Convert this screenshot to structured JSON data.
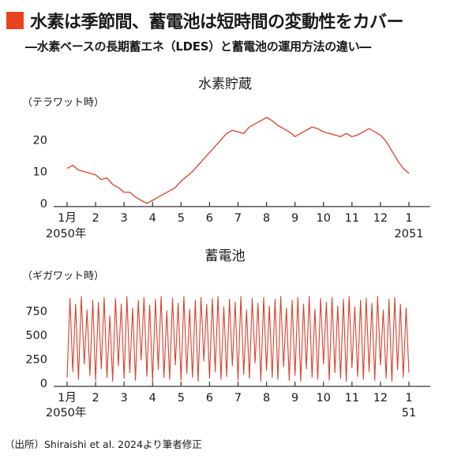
{
  "header": {
    "title": "水素は季節間、蓄電池は短時間の変動性をカバー",
    "subtitle": "―水素ベースの長期蓄エネ（LDES）と蓄電池の運用方法の違い―"
  },
  "footer": {
    "source": "（出所）Shiraishi et al. 2024より筆者修正"
  },
  "colors": {
    "accent": "#e8431f",
    "line": "#d8412a",
    "axis": "#333333"
  },
  "chart_data": [
    {
      "type": "line",
      "title": "水素貯蔵",
      "ylabel": "（テラワット時）",
      "ylim": [
        0,
        28
      ],
      "yticks": [
        0,
        10,
        20
      ],
      "xlim": [
        0,
        12
      ],
      "xtick_labels": [
        "1月",
        "2",
        "3",
        "4",
        "5",
        "6",
        "7",
        "8",
        "9",
        "10",
        "11",
        "12",
        "1"
      ],
      "xtick_sublabels": [
        "2050年",
        "2051"
      ],
      "series": [
        {
          "x": [
            0,
            0.2,
            0.4,
            0.6,
            0.8,
            1.0,
            1.2,
            1.4,
            1.6,
            1.8,
            2.0,
            2.2,
            2.4,
            2.6,
            2.8,
            3.0,
            3.2,
            3.4,
            3.6,
            3.8,
            4.0,
            4.2,
            4.4,
            4.6,
            4.8,
            5.0,
            5.2,
            5.4,
            5.6,
            5.8,
            6.0,
            6.2,
            6.4,
            6.6,
            6.8,
            7.0,
            7.2,
            7.4,
            7.6,
            7.8,
            8.0,
            8.2,
            8.4,
            8.6,
            8.8,
            9.0,
            9.2,
            9.4,
            9.6,
            9.8,
            10.0,
            10.2,
            10.4,
            10.6,
            10.8,
            11.0,
            11.2,
            11.4,
            11.6,
            11.8,
            12.0
          ],
          "values": [
            11,
            12,
            10.5,
            10,
            9.5,
            9,
            7.5,
            8,
            6,
            5,
            3.5,
            3.5,
            2,
            1,
            0,
            1,
            2,
            3,
            4,
            5,
            7,
            8.5,
            10,
            12,
            14,
            16,
            18,
            20,
            22,
            23,
            22.5,
            22,
            24,
            25,
            26,
            27,
            26,
            24.5,
            23.5,
            22.5,
            21,
            22,
            23,
            24,
            23.5,
            22.5,
            22,
            21.5,
            21,
            22,
            21,
            21.5,
            22.5,
            23.5,
            22.5,
            21.5,
            19.5,
            16.5,
            13.5,
            11,
            9.5
          ]
        }
      ]
    },
    {
      "type": "line",
      "title": "蓄電池",
      "ylabel": "（ギガワット時）",
      "ylim": [
        0,
        900
      ],
      "yticks": [
        0,
        250,
        500,
        750
      ],
      "xlim": [
        0,
        12
      ],
      "xtick_labels": [
        "1月",
        "2",
        "3",
        "4",
        "5",
        "6",
        "7",
        "8",
        "9",
        "10",
        "11",
        "12",
        "1"
      ],
      "xtick_sublabels": [
        "2050年",
        "51"
      ],
      "series": [
        {
          "x": [
            0,
            0.1,
            0.2,
            0.3,
            0.4,
            0.5,
            0.6,
            0.7,
            0.8,
            0.9,
            1.0,
            1.1,
            1.2,
            1.3,
            1.4,
            1.5,
            1.6,
            1.7,
            1.8,
            1.9,
            2.0,
            2.1,
            2.2,
            2.3,
            2.4,
            2.5,
            2.6,
            2.7,
            2.8,
            2.9,
            3.0,
            3.1,
            3.2,
            3.3,
            3.4,
            3.5,
            3.6,
            3.7,
            3.8,
            3.9,
            4.0,
            4.1,
            4.2,
            4.3,
            4.4,
            4.5,
            4.6,
            4.7,
            4.8,
            4.9,
            5.0,
            5.1,
            5.2,
            5.3,
            5.4,
            5.5,
            5.6,
            5.7,
            5.8,
            5.9,
            6.0,
            6.1,
            6.2,
            6.3,
            6.4,
            6.5,
            6.6,
            6.7,
            6.8,
            6.9,
            7.0,
            7.1,
            7.2,
            7.3,
            7.4,
            7.5,
            7.6,
            7.7,
            7.8,
            7.9,
            8.0,
            8.1,
            8.2,
            8.3,
            8.4,
            8.5,
            8.6,
            8.7,
            8.8,
            8.9,
            9.0,
            9.1,
            9.2,
            9.3,
            9.4,
            9.5,
            9.6,
            9.7,
            9.8,
            9.9,
            10.0,
            10.1,
            10.2,
            10.3,
            10.4,
            10.5,
            10.6,
            10.7,
            10.8,
            10.9,
            11.0,
            11.1,
            11.2,
            11.3,
            11.4,
            11.5,
            11.6,
            11.7,
            11.8,
            11.9,
            12.0
          ],
          "values": [
            60,
            880,
            120,
            820,
            40,
            900,
            200,
            760,
            80,
            860,
            30,
            840,
            150,
            890,
            60,
            700,
            20,
            880,
            180,
            820,
            50,
            900,
            110,
            780,
            30,
            860,
            240,
            890,
            70,
            810,
            20,
            870,
            140,
            900,
            60,
            750,
            40,
            880,
            190,
            830,
            30,
            900,
            100,
            770,
            60,
            860,
            20,
            890,
            230,
            820,
            50,
            880,
            120,
            900,
            40,
            790,
            70,
            870,
            180,
            840,
            30,
            900,
            90,
            760,
            50,
            880,
            210,
            830,
            20,
            890,
            130,
            800,
            60,
            870,
            40,
            900,
            170,
            780,
            30,
            860,
            80,
            890,
            20,
            820,
            150,
            900,
            60,
            770,
            40,
            880,
            200,
            840,
            30,
            890,
            110,
            800,
            50,
            870,
            20,
            900,
            160,
            790,
            70,
            860,
            40,
            880,
            120,
            830,
            30,
            900,
            190,
            760,
            50,
            870,
            20,
            890,
            140,
            820,
            60,
            780,
            110
          ]
        }
      ]
    }
  ]
}
